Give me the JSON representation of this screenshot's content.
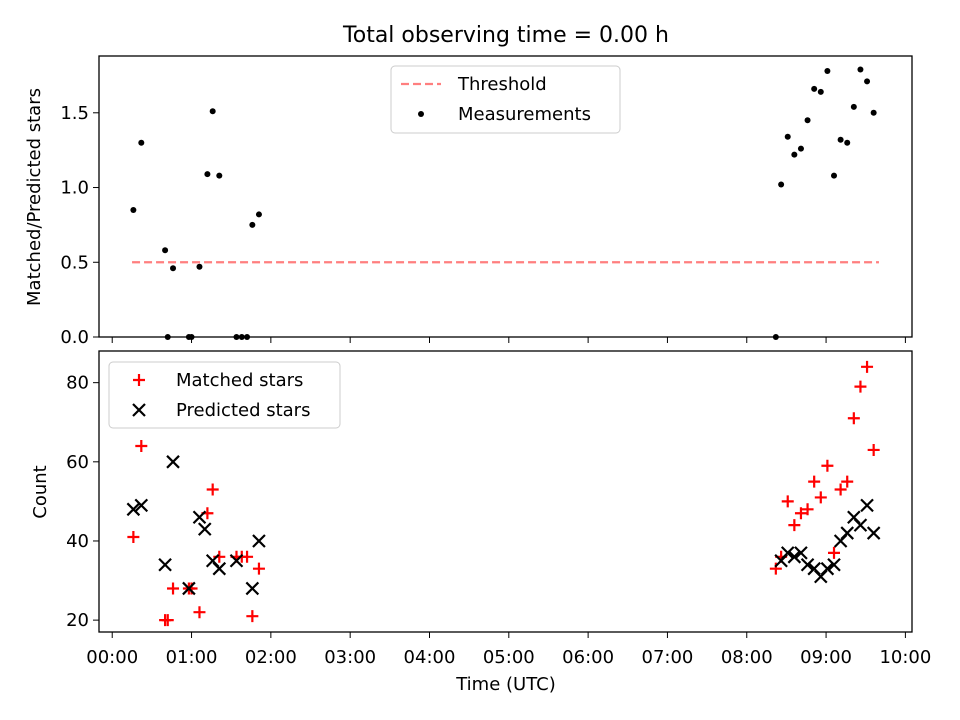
{
  "chart_data": [
    {
      "type": "scatter",
      "title": "Total observing time = 0.00 h",
      "xlabel": "",
      "ylabel": "Matched/Predicted stars",
      "xlim": [
        "23:50",
        "10:05"
      ],
      "ylim": [
        0,
        1.88
      ],
      "yticks": [
        "0.0",
        "0.5",
        "1.0",
        "1.5"
      ],
      "legend": "top-center",
      "series": [
        {
          "name": "Threshold",
          "kind": "dashed-line",
          "color": "#ff7f7f",
          "x": [
            "00:15",
            "09:40"
          ],
          "y": [
            0.5,
            0.5
          ]
        },
        {
          "name": "Measurements",
          "kind": "points",
          "color": "#000000",
          "x": [
            "00:16",
            "00:22",
            "00:40",
            "00:42",
            "00:46",
            "00:58",
            "01:00",
            "01:06",
            "01:12",
            "01:16",
            "01:21",
            "01:34",
            "01:38",
            "01:42",
            "01:46",
            "01:51",
            "08:22",
            "08:26",
            "08:31",
            "08:36",
            "08:41",
            "08:46",
            "08:51",
            "08:56",
            "09:01",
            "09:06",
            "09:11",
            "09:16",
            "09:21",
            "09:26",
            "09:31",
            "09:36"
          ],
          "y": [
            0.85,
            1.3,
            0.58,
            0,
            0.46,
            0,
            0,
            0.47,
            1.09,
            1.51,
            1.08,
            0,
            0,
            0,
            0.75,
            0.82,
            0,
            1.02,
            1.34,
            1.22,
            1.26,
            1.45,
            1.66,
            1.64,
            1.78,
            1.08,
            1.32,
            1.3,
            1.54,
            1.79,
            1.71,
            1.5
          ]
        }
      ]
    },
    {
      "type": "scatter",
      "title": "",
      "xlabel": "Time (UTC)",
      "ylabel": "Count",
      "xlim": [
        "23:50",
        "10:05"
      ],
      "ylim": [
        17,
        88
      ],
      "yticks": [
        "20",
        "40",
        "60",
        "80"
      ],
      "xticks": [
        "00:00",
        "01:00",
        "02:00",
        "03:00",
        "04:00",
        "05:00",
        "06:00",
        "07:00",
        "08:00",
        "09:00",
        "10:00"
      ],
      "legend": "top-left",
      "series": [
        {
          "name": "Matched stars",
          "marker": "plus",
          "color": "#ff0000",
          "x": [
            "00:16",
            "00:22",
            "00:40",
            "00:42",
            "00:46",
            "00:58",
            "01:00",
            "01:06",
            "01:12",
            "01:16",
            "01:21",
            "01:34",
            "01:38",
            "01:42",
            "01:46",
            "01:51",
            "08:22",
            "08:26",
            "08:31",
            "08:36",
            "08:41",
            "08:46",
            "08:51",
            "08:56",
            "09:01",
            "09:06",
            "09:11",
            "09:16",
            "09:21",
            "09:26",
            "09:31",
            "09:36"
          ],
          "y": [
            41,
            64,
            20,
            20,
            28,
            28,
            28,
            22,
            47,
            53,
            36,
            36,
            36,
            36,
            21,
            33,
            33,
            36,
            50,
            44,
            47,
            48,
            55,
            51,
            59,
            37,
            53,
            55,
            71,
            79,
            84,
            63
          ]
        },
        {
          "name": "Predicted stars",
          "marker": "x",
          "color": "#000000",
          "x": [
            "00:16",
            "00:22",
            "00:40",
            "00:46",
            "00:58",
            "01:06",
            "01:10",
            "01:16",
            "01:21",
            "01:34",
            "01:46",
            "01:51",
            "08:26",
            "08:31",
            "08:36",
            "08:41",
            "08:46",
            "08:51",
            "08:56",
            "09:01",
            "09:06",
            "09:11",
            "09:16",
            "09:21",
            "09:26",
            "09:31",
            "09:36"
          ],
          "y": [
            48,
            49,
            34,
            60,
            28,
            46,
            43,
            35,
            33,
            35,
            28,
            40,
            35,
            37,
            36,
            37,
            34,
            33,
            31,
            33,
            34,
            40,
            42,
            46,
            44,
            49,
            42
          ]
        }
      ]
    }
  ]
}
